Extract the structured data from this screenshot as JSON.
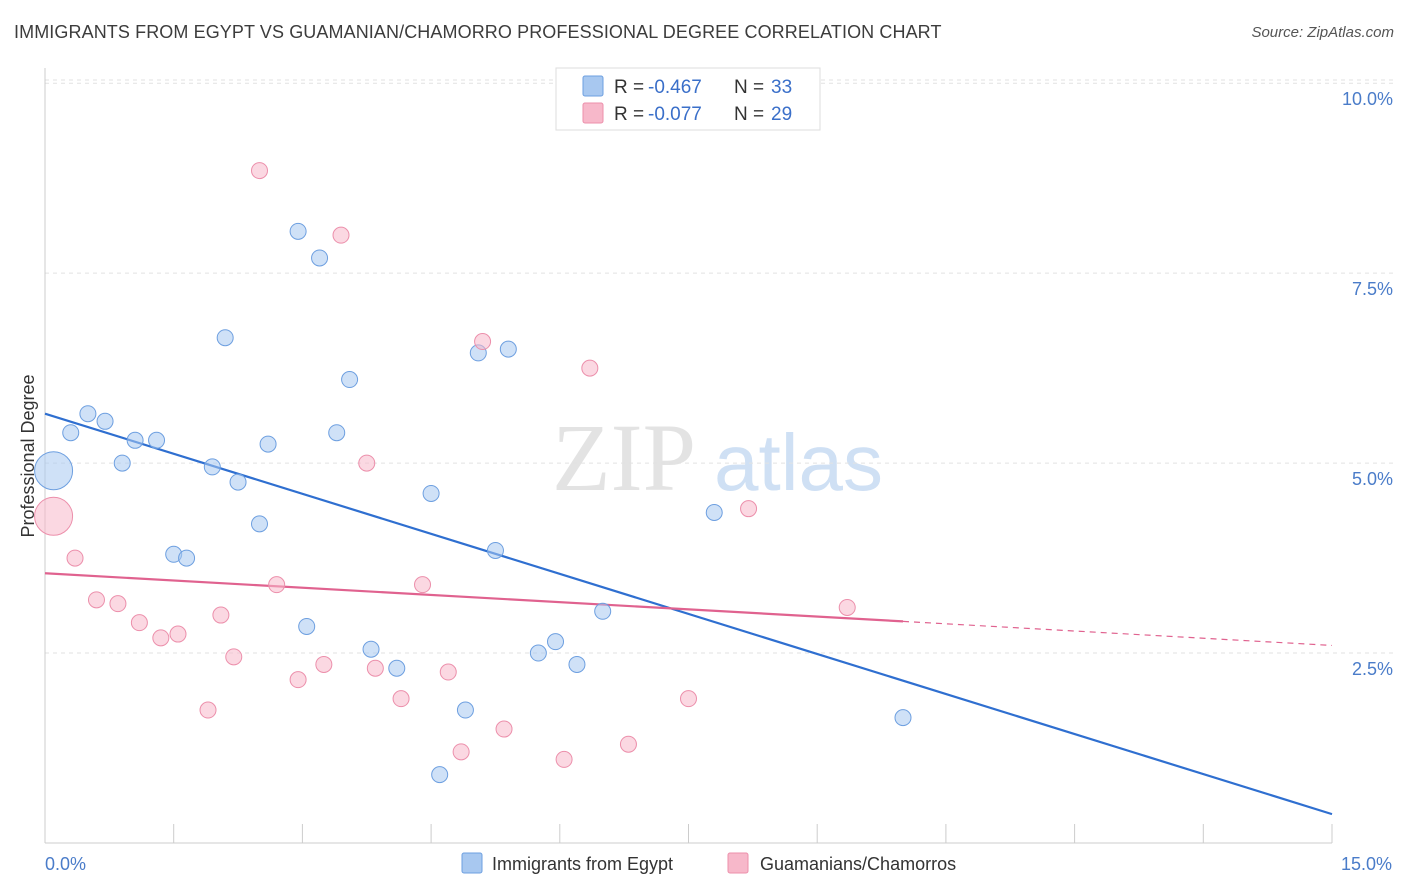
{
  "title": "IMMIGRANTS FROM EGYPT VS GUAMANIAN/CHAMORRO PROFESSIONAL DEGREE CORRELATION CHART",
  "source": "Source: ZipAtlas.com",
  "watermark": {
    "zip": "ZIP",
    "atlas": "atlas"
  },
  "legend_top": [
    {
      "r_label": "R = ",
      "r_value": "-0.467",
      "n_label": "N = ",
      "n_value": "33",
      "color": "#a8c8f0"
    },
    {
      "r_label": "R = ",
      "r_value": "-0.077",
      "n_label": "N = ",
      "n_value": "29",
      "color": "#f7b8ca"
    }
  ],
  "legend_bottom": [
    "Immigrants from Egypt",
    "Guamanians/Chamorros"
  ],
  "chart_data": {
    "type": "scatter",
    "xlabel": "",
    "ylabel": "Professional Degree",
    "xlim": [
      0,
      15
    ],
    "ylim": [
      0,
      10.2
    ],
    "x_tick_labels": [
      {
        "value": 0,
        "label": "0.0%"
      },
      {
        "value": 15,
        "label": "15.0%"
      }
    ],
    "y_tick_labels": [
      {
        "value": 2.5,
        "label": "2.5%"
      },
      {
        "value": 5.0,
        "label": "5.0%"
      },
      {
        "value": 7.5,
        "label": "7.5%"
      },
      {
        "value": 10.0,
        "label": "10.0%"
      }
    ],
    "grid": true,
    "series": [
      {
        "name": "Immigrants from Egypt",
        "color": "#a8c8f0",
        "stroke": "#6d9fe0",
        "line_color": "#2f6fd0",
        "trend": {
          "x0": 0,
          "y0": 5.65,
          "x1": 15,
          "y1": 0.38,
          "solid_until": 15
        },
        "points": [
          {
            "x": 0.1,
            "y": 4.9,
            "size": "large"
          },
          {
            "x": 0.3,
            "y": 5.4
          },
          {
            "x": 0.5,
            "y": 5.65
          },
          {
            "x": 0.7,
            "y": 5.55
          },
          {
            "x": 0.9,
            "y": 5.0
          },
          {
            "x": 1.05,
            "y": 5.3
          },
          {
            "x": 1.3,
            "y": 5.3
          },
          {
            "x": 1.5,
            "y": 3.8
          },
          {
            "x": 1.65,
            "y": 3.75
          },
          {
            "x": 1.95,
            "y": 4.95
          },
          {
            "x": 2.1,
            "y": 6.65
          },
          {
            "x": 2.25,
            "y": 4.75
          },
          {
            "x": 2.5,
            "y": 4.2
          },
          {
            "x": 2.6,
            "y": 5.25
          },
          {
            "x": 2.95,
            "y": 8.05
          },
          {
            "x": 3.05,
            "y": 2.85
          },
          {
            "x": 3.2,
            "y": 7.7
          },
          {
            "x": 3.4,
            "y": 5.4
          },
          {
            "x": 3.55,
            "y": 6.1
          },
          {
            "x": 3.8,
            "y": 2.55
          },
          {
            "x": 4.1,
            "y": 2.3
          },
          {
            "x": 4.5,
            "y": 4.6
          },
          {
            "x": 4.6,
            "y": 0.9
          },
          {
            "x": 4.9,
            "y": 1.75
          },
          {
            "x": 5.05,
            "y": 6.45
          },
          {
            "x": 5.25,
            "y": 3.85
          },
          {
            "x": 5.4,
            "y": 6.5
          },
          {
            "x": 5.75,
            "y": 2.5
          },
          {
            "x": 5.95,
            "y": 2.65
          },
          {
            "x": 6.2,
            "y": 2.35
          },
          {
            "x": 6.5,
            "y": 3.05
          },
          {
            "x": 7.8,
            "y": 4.35
          },
          {
            "x": 10.0,
            "y": 1.65
          }
        ]
      },
      {
        "name": "Guamanians/Chamorros",
        "color": "#f7b8ca",
        "stroke": "#ec8fab",
        "line_color": "#e0628f",
        "trend": {
          "x0": 0,
          "y0": 3.55,
          "x1": 15,
          "y1": 2.6,
          "solid_until": 10.0
        },
        "points": [
          {
            "x": 0.1,
            "y": 4.3,
            "size": "large"
          },
          {
            "x": 0.35,
            "y": 3.75
          },
          {
            "x": 0.6,
            "y": 3.2
          },
          {
            "x": 0.85,
            "y": 3.15
          },
          {
            "x": 1.1,
            "y": 2.9
          },
          {
            "x": 1.35,
            "y": 2.7
          },
          {
            "x": 1.55,
            "y": 2.75
          },
          {
            "x": 1.9,
            "y": 1.75
          },
          {
            "x": 2.05,
            "y": 3.0
          },
          {
            "x": 2.2,
            "y": 2.45
          },
          {
            "x": 2.5,
            "y": 8.85
          },
          {
            "x": 2.7,
            "y": 3.4
          },
          {
            "x": 2.95,
            "y": 2.15
          },
          {
            "x": 3.25,
            "y": 2.35
          },
          {
            "x": 3.45,
            "y": 8.0
          },
          {
            "x": 3.75,
            "y": 5.0
          },
          {
            "x": 3.85,
            "y": 2.3
          },
          {
            "x": 4.15,
            "y": 1.9
          },
          {
            "x": 4.4,
            "y": 3.4
          },
          {
            "x": 4.7,
            "y": 2.25
          },
          {
            "x": 4.85,
            "y": 1.2
          },
          {
            "x": 5.1,
            "y": 6.6
          },
          {
            "x": 5.35,
            "y": 1.5
          },
          {
            "x": 6.05,
            "y": 1.1
          },
          {
            "x": 6.35,
            "y": 6.25
          },
          {
            "x": 6.8,
            "y": 1.3
          },
          {
            "x": 7.5,
            "y": 1.9
          },
          {
            "x": 8.2,
            "y": 4.4
          },
          {
            "x": 9.35,
            "y": 3.1
          }
        ]
      }
    ]
  }
}
